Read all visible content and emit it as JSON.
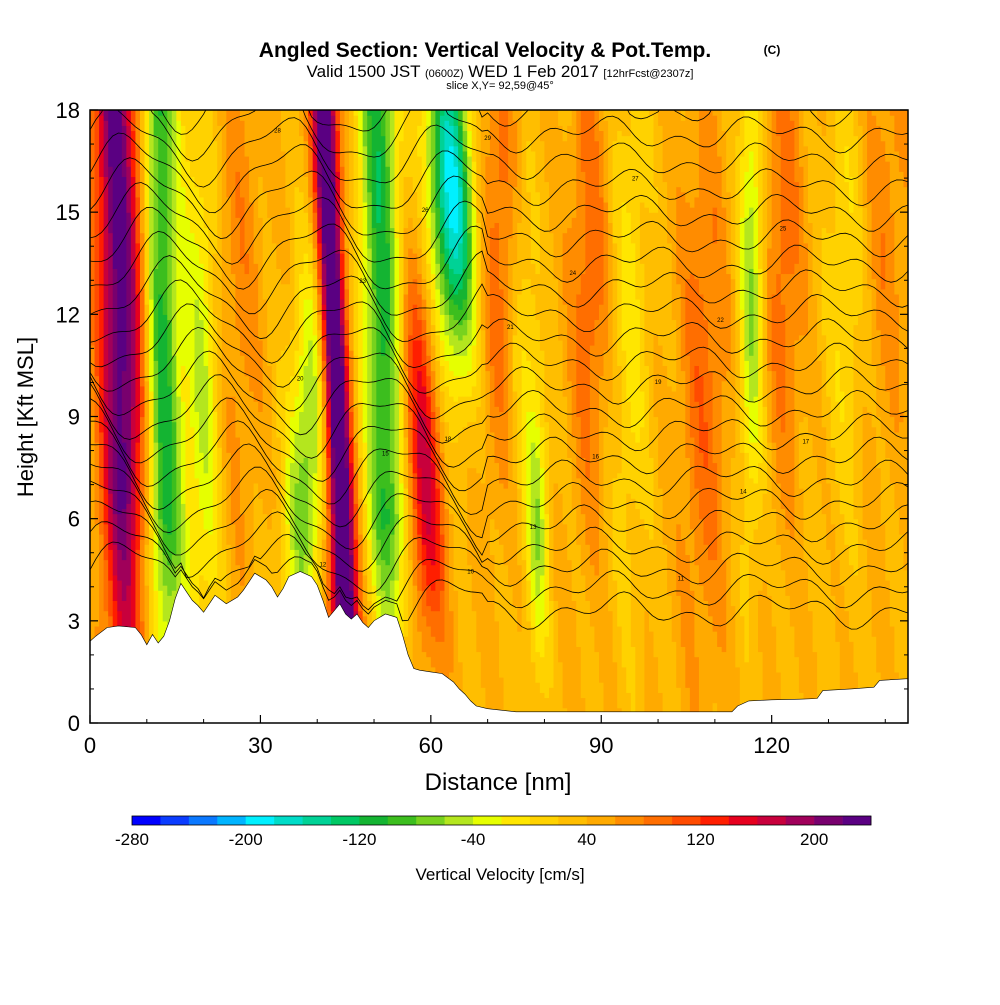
{
  "chart_data": {
    "type": "heatmap",
    "title": "Angled Section: Vertical Velocity & Pot.Temp.",
    "title_units": "(C)",
    "subtitle_parts": [
      "Valid 1500 JST",
      "(0600Z)",
      "WED 1 Feb 2017",
      "[12hrFcst@2307z]"
    ],
    "slice_label": "slice X,Y= 92,59@45°",
    "xlabel": "Distance [nm]",
    "ylabel": "Height [Kft MSL]",
    "xlim": [
      0,
      144
    ],
    "ylim": [
      0,
      18
    ],
    "x_ticks": [
      "0",
      "30",
      "60",
      "90",
      "120"
    ],
    "x_tick_values": [
      0,
      30,
      60,
      90,
      120
    ],
    "y_ticks": [
      "0",
      "3",
      "6",
      "9",
      "12",
      "15",
      "18"
    ],
    "y_tick_values": [
      0,
      3,
      6,
      9,
      12,
      15,
      18
    ],
    "colorbar_label": "Vertical Velocity [cm/s]",
    "colorbar_range": [
      -280,
      240
    ],
    "colorbar_ticks": [
      "-280",
      "-200",
      "-120",
      "-40",
      "40",
      "120",
      "200"
    ],
    "colorbar_tick_values": [
      -280,
      -200,
      -120,
      -40,
      40,
      120,
      200
    ],
    "colorbar_colors": [
      "#0000ff",
      "#0a3cff",
      "#0a78ff",
      "#00b4ff",
      "#00f0ff",
      "#00dcc8",
      "#00d296",
      "#00c864",
      "#14b432",
      "#3cbe1e",
      "#78d21e",
      "#b4e61e",
      "#e6ff00",
      "#ffe600",
      "#ffd200",
      "#ffbe00",
      "#ffaa00",
      "#ff8c00",
      "#ff6e00",
      "#ff4b00",
      "#ff1e00",
      "#e6001e",
      "#c8003c",
      "#a0005a",
      "#78006e",
      "#5a0082"
    ],
    "terrain": [
      [
        0,
        2.4
      ],
      [
        1,
        2.55
      ],
      [
        3,
        2.8
      ],
      [
        5,
        2.85
      ],
      [
        8,
        2.8
      ],
      [
        9,
        2.6
      ],
      [
        10,
        2.3
      ],
      [
        11,
        2.6
      ],
      [
        12,
        2.35
      ],
      [
        13,
        2.55
      ],
      [
        14,
        3.0
      ],
      [
        15,
        3.65
      ],
      [
        16,
        4.1
      ],
      [
        17,
        3.85
      ],
      [
        18,
        3.6
      ],
      [
        19,
        3.45
      ],
      [
        20,
        3.25
      ],
      [
        21,
        3.5
      ],
      [
        22,
        3.75
      ],
      [
        24,
        3.5
      ],
      [
        26,
        3.7
      ],
      [
        27,
        3.9
      ],
      [
        28,
        4.15
      ],
      [
        29,
        4.4
      ],
      [
        31,
        4.2
      ],
      [
        32,
        4.0
      ],
      [
        33,
        3.7
      ],
      [
        34,
        3.95
      ],
      [
        35,
        4.3
      ],
      [
        37,
        4.45
      ],
      [
        39,
        4.3
      ],
      [
        40,
        4.05
      ],
      [
        41,
        3.6
      ],
      [
        42,
        3.1
      ],
      [
        43,
        3.3
      ],
      [
        44,
        3.5
      ],
      [
        45,
        3.2
      ],
      [
        46,
        3.05
      ],
      [
        47,
        3.2
      ],
      [
        48,
        2.95
      ],
      [
        49,
        2.8
      ],
      [
        50,
        3.0
      ],
      [
        52,
        3.2
      ],
      [
        54,
        3.1
      ],
      [
        55,
        2.6
      ],
      [
        56,
        2.0
      ],
      [
        57,
        1.6
      ],
      [
        58,
        1.55
      ],
      [
        60,
        1.5
      ],
      [
        62,
        1.45
      ],
      [
        64,
        1.2
      ],
      [
        65,
        1.0
      ],
      [
        66,
        0.85
      ],
      [
        67,
        0.65
      ],
      [
        68,
        0.5
      ],
      [
        70,
        0.42
      ],
      [
        75,
        0.33
      ],
      [
        80,
        0.33
      ],
      [
        90,
        0.33
      ],
      [
        100,
        0.33
      ],
      [
        108,
        0.33
      ],
      [
        110,
        0.33
      ],
      [
        113,
        0.33
      ],
      [
        114,
        0.5
      ],
      [
        116,
        0.65
      ],
      [
        120,
        0.68
      ],
      [
        125,
        0.7
      ],
      [
        128,
        0.72
      ],
      [
        129,
        0.95
      ],
      [
        134,
        1.0
      ],
      [
        138,
        1.05
      ],
      [
        139,
        1.25
      ],
      [
        144,
        1.3
      ]
    ],
    "isentrope_labels": [
      "9",
      "10",
      "11",
      "12",
      "13",
      "14",
      "15",
      "16",
      "17",
      "18",
      "19",
      "20",
      "21",
      "22",
      "23",
      "24",
      "25",
      "26",
      "27",
      "28",
      "29",
      "30",
      "31",
      "32",
      "33",
      "34"
    ]
  }
}
